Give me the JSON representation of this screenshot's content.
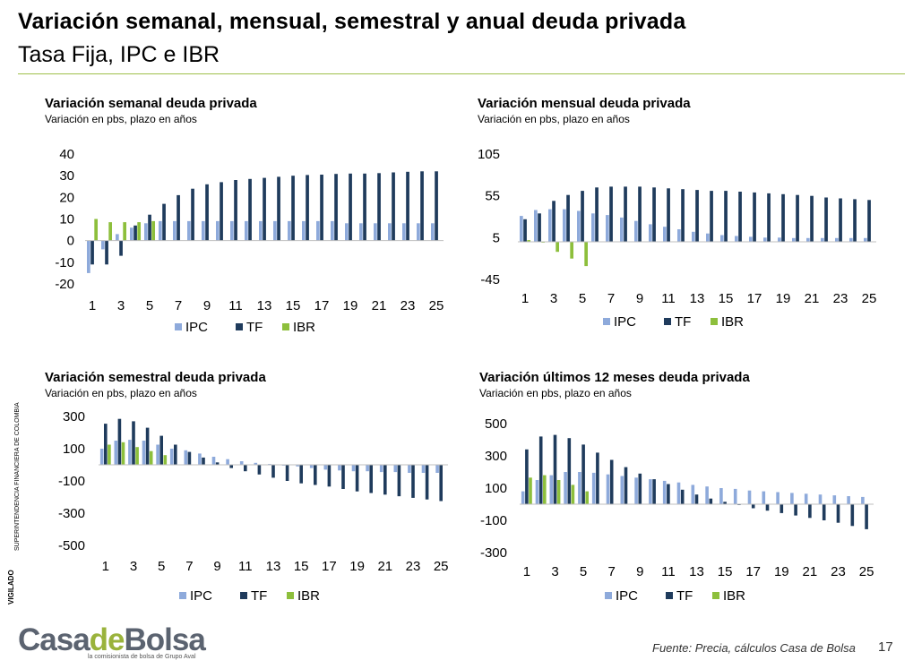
{
  "page": {
    "title": "Variación semanal, mensual, semestral y anual deuda privada",
    "subtitle": "Tasa Fija, IPC e IBR",
    "footer_source": "Fuente: Precia, cálculos Casa de Bolsa",
    "page_number": "17",
    "logo_text_a": "Casa",
    "logo_text_b": "de",
    "logo_text_c": "Bolsa",
    "logo_tagline": "la comisionista de bolsa de Grupo Aval",
    "side_tag_1": "VIGILADO",
    "side_tag_2": "SUPERINTENDENCIA FINANCIERA DE COLOMBIA"
  },
  "colors": {
    "IPC": "#8eaadb",
    "TF": "#1f3b5c",
    "IBR": "#8dbf3c",
    "rule": "#9fc04a"
  },
  "chart_data": [
    {
      "type": "bar",
      "title": "Variación semanal deuda privada",
      "subtitle": "Variación en pbs, plazo en años",
      "categories": [
        1,
        2,
        3,
        4,
        5,
        6,
        7,
        8,
        9,
        10,
        11,
        12,
        13,
        14,
        15,
        16,
        17,
        18,
        19,
        20,
        21,
        22,
        23,
        24,
        25
      ],
      "x_tick_labels": [
        "1",
        "3",
        "5",
        "7",
        "9",
        "11",
        "13",
        "15",
        "17",
        "19",
        "21",
        "23",
        "25"
      ],
      "ylim": [
        -20,
        40
      ],
      "y_ticks": [
        40,
        30,
        20,
        10,
        0,
        -10,
        -20
      ],
      "legend": [
        "IPC",
        "TF",
        "IBR"
      ],
      "series": [
        {
          "name": "IPC",
          "values": [
            -15,
            -4,
            3,
            6,
            8,
            9,
            9,
            9,
            9,
            9,
            9,
            9,
            9,
            9,
            9,
            9,
            9,
            9,
            8,
            8,
            8,
            8,
            8,
            8,
            8
          ]
        },
        {
          "name": "TF",
          "values": [
            -11,
            -11,
            -7,
            7,
            12,
            17,
            21,
            24,
            26,
            27,
            28,
            28.5,
            29,
            29.5,
            30,
            30.3,
            30.5,
            30.8,
            31,
            31,
            31.2,
            31.5,
            31.8,
            32,
            32
          ]
        },
        {
          "name": "IBR",
          "values": [
            10,
            8.5,
            8.5,
            8.5,
            9,
            null,
            null,
            null,
            null,
            null,
            null,
            null,
            null,
            null,
            null,
            null,
            null,
            null,
            null,
            null,
            null,
            null,
            null,
            null,
            null
          ]
        }
      ]
    },
    {
      "type": "bar",
      "title": "Variación mensual deuda privada",
      "subtitle": "Variación en pbs, plazo en años",
      "categories": [
        1,
        2,
        3,
        4,
        5,
        6,
        7,
        8,
        9,
        10,
        11,
        12,
        13,
        14,
        15,
        16,
        17,
        18,
        19,
        20,
        21,
        22,
        23,
        24,
        25
      ],
      "x_tick_labels": [
        "1",
        "3",
        "5",
        "7",
        "9",
        "11",
        "13",
        "15",
        "17",
        "19",
        "21",
        "23",
        "25"
      ],
      "ylim": [
        -45,
        105
      ],
      "y_ticks": [
        105,
        55,
        5,
        -45
      ],
      "legend": [
        "IPC",
        "TF",
        "IBR"
      ],
      "series": [
        {
          "name": "IPC",
          "values": [
            31,
            38,
            39,
            39,
            37,
            34,
            32,
            29,
            25,
            21,
            18,
            15,
            12,
            10,
            8,
            7,
            6,
            5,
            5,
            4.5,
            4.5,
            4.5,
            4.5,
            4.5,
            4.5
          ]
        },
        {
          "name": "TF",
          "values": [
            27,
            34,
            49,
            56,
            61,
            65,
            66,
            66,
            66,
            65,
            64,
            63,
            62,
            61,
            61,
            60,
            59,
            58,
            57,
            56,
            55,
            53,
            52,
            51,
            50
          ]
        },
        {
          "name": "IBR",
          "values": [
            2,
            -1,
            -12,
            -20,
            -29,
            null,
            null,
            null,
            null,
            null,
            null,
            null,
            null,
            null,
            null,
            null,
            null,
            null,
            null,
            null,
            null,
            null,
            null,
            null,
            null
          ]
        }
      ]
    },
    {
      "type": "bar",
      "title": "Variación semestral deuda privada",
      "subtitle": "Variación en pbs, plazo en años",
      "categories": [
        1,
        2,
        3,
        4,
        5,
        6,
        7,
        8,
        9,
        10,
        11,
        12,
        13,
        14,
        15,
        16,
        17,
        18,
        19,
        20,
        21,
        22,
        23,
        24,
        25
      ],
      "x_tick_labels": [
        "1",
        "3",
        "5",
        "7",
        "9",
        "11",
        "13",
        "15",
        "17",
        "19",
        "21",
        "23",
        "25"
      ],
      "ylim": [
        -500,
        300
      ],
      "y_ticks": [
        300,
        100,
        -100,
        -300,
        -500
      ],
      "legend": [
        "IPC",
        "TF",
        "IBR"
      ],
      "series": [
        {
          "name": "IPC",
          "values": [
            100,
            150,
            155,
            150,
            125,
            100,
            90,
            70,
            50,
            35,
            22,
            12,
            5,
            -5,
            -10,
            -20,
            -30,
            -35,
            -40,
            -40,
            -45,
            -45,
            -50,
            -50,
            -50
          ]
        },
        {
          "name": "TF",
          "values": [
            255,
            285,
            270,
            230,
            180,
            125,
            80,
            45,
            15,
            -20,
            -40,
            -60,
            -80,
            -100,
            -115,
            -125,
            -135,
            -150,
            -165,
            -175,
            -185,
            -195,
            -205,
            -215,
            -225
          ]
        },
        {
          "name": "IBR",
          "values": [
            125,
            140,
            110,
            85,
            60,
            null,
            null,
            null,
            null,
            null,
            null,
            null,
            null,
            null,
            null,
            null,
            null,
            null,
            null,
            null,
            null,
            null,
            null,
            null,
            null
          ]
        }
      ]
    },
    {
      "type": "bar",
      "title": "Variación últimos 12 meses deuda privada",
      "subtitle": "Variación en pbs, plazo en años",
      "categories": [
        1,
        2,
        3,
        4,
        5,
        6,
        7,
        8,
        9,
        10,
        11,
        12,
        13,
        14,
        15,
        16,
        17,
        18,
        19,
        20,
        21,
        22,
        23,
        24,
        25
      ],
      "x_tick_labels": [
        "1",
        "3",
        "5",
        "7",
        "9",
        "11",
        "13",
        "15",
        "17",
        "19",
        "21",
        "23",
        "25"
      ],
      "ylim": [
        -300,
        500
      ],
      "y_ticks": [
        500,
        300,
        100,
        -100,
        -300
      ],
      "legend": [
        "IPC",
        "TF",
        "IBR"
      ],
      "series": [
        {
          "name": "IPC",
          "values": [
            80,
            150,
            180,
            200,
            200,
            195,
            185,
            175,
            165,
            155,
            145,
            135,
            120,
            110,
            100,
            95,
            85,
            80,
            75,
            70,
            65,
            60,
            55,
            50,
            45
          ]
        },
        {
          "name": "TF",
          "values": [
            340,
            420,
            430,
            410,
            370,
            320,
            275,
            230,
            190,
            155,
            125,
            90,
            60,
            35,
            15,
            -5,
            -25,
            -40,
            -55,
            -70,
            -85,
            -100,
            -115,
            -135,
            -155
          ]
        },
        {
          "name": "IBR",
          "values": [
            165,
            180,
            150,
            120,
            80,
            null,
            null,
            null,
            null,
            null,
            null,
            null,
            null,
            null,
            null,
            null,
            null,
            null,
            null,
            null,
            null,
            null,
            null,
            null,
            null
          ]
        }
      ]
    }
  ]
}
